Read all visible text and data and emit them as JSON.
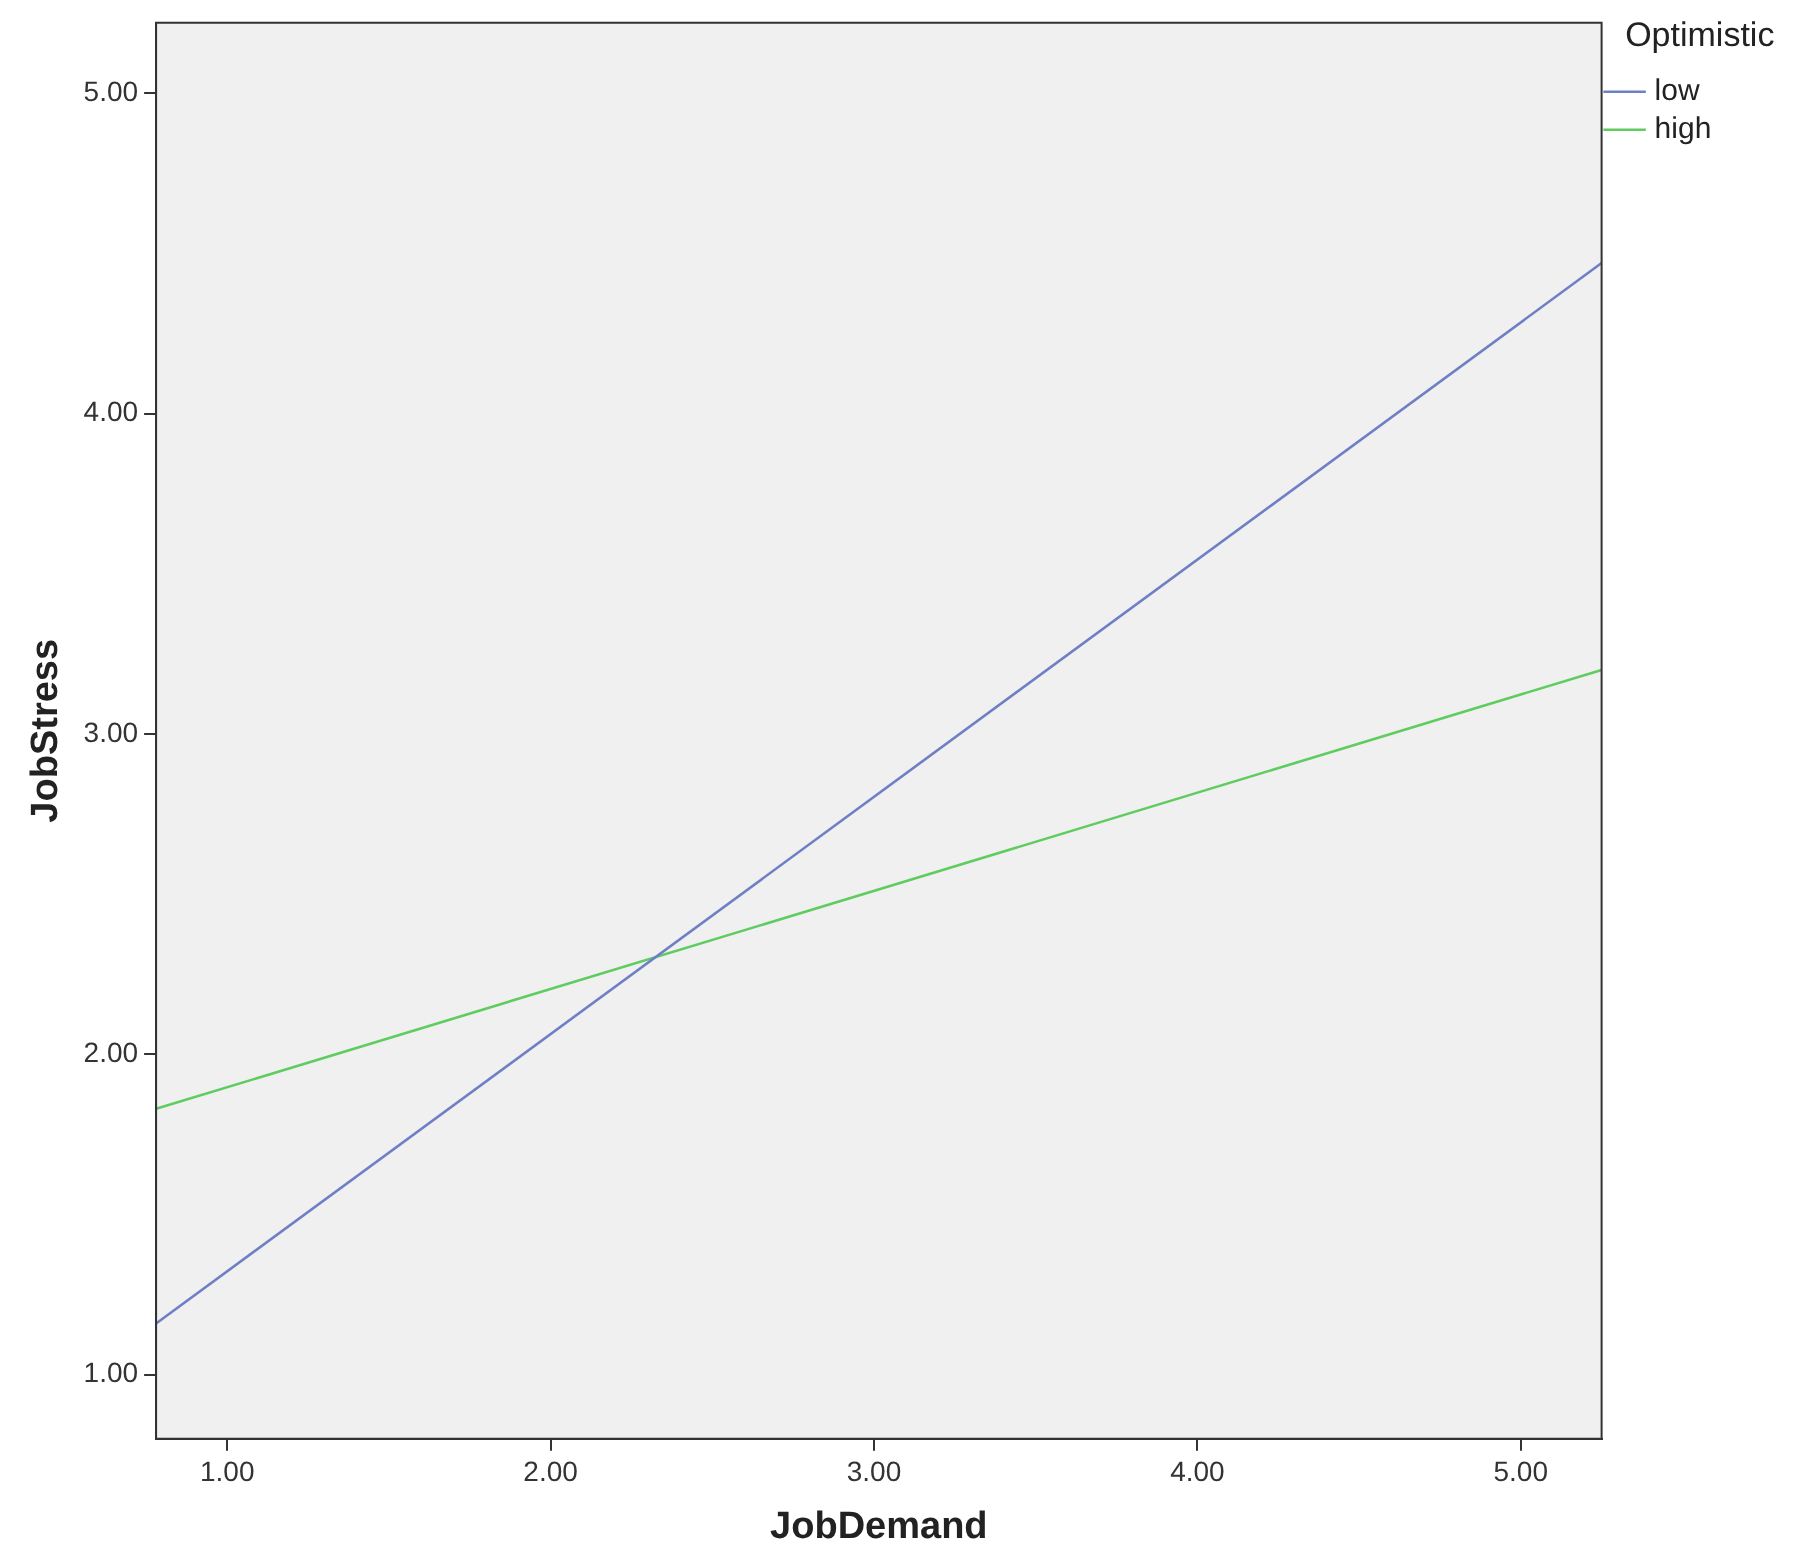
{
  "chart_data": {
    "type": "line",
    "xlabel": "JobDemand",
    "ylabel": "JobStress",
    "legend_title": "Optimistic",
    "legend": "top right",
    "grid": false,
    "marker": "none",
    "xlim": [
      0.78,
      5.25
    ],
    "ylim": [
      0.8,
      5.22
    ],
    "xticks": [
      {
        "value": 1,
        "label": "1.00"
      },
      {
        "value": 2,
        "label": "2.00"
      },
      {
        "value": 3,
        "label": "3.00"
      },
      {
        "value": 4,
        "label": "4.00"
      },
      {
        "value": 5,
        "label": "5.00"
      }
    ],
    "yticks": [
      {
        "value": 1,
        "label": "1.00"
      },
      {
        "value": 2,
        "label": "2.00"
      },
      {
        "value": 3,
        "label": "3.00"
      },
      {
        "value": 4,
        "label": "4.00"
      },
      {
        "value": 5,
        "label": "5.00"
      }
    ],
    "x": [
      0.78,
      5.25
    ],
    "series": [
      {
        "name": "low",
        "color": "#6f7fc6",
        "values": [
          1.16,
          4.47
        ]
      },
      {
        "name": "high",
        "color": "#5fcc5f",
        "values": [
          1.83,
          3.2
        ]
      }
    ]
  }
}
